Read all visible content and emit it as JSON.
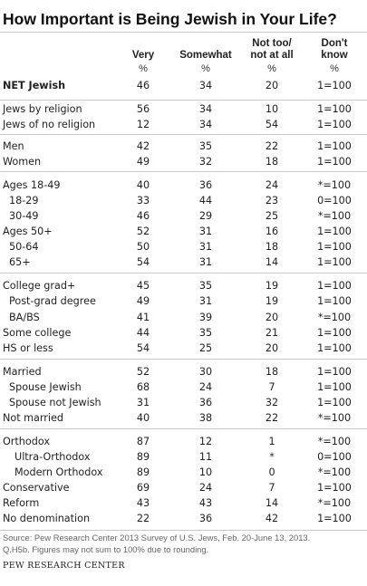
{
  "title": "How Important is Being Jewish in Your Life?",
  "columns": [
    {
      "l1": "Very",
      "l2": "",
      "unit": "%"
    },
    {
      "l1": "Somewhat",
      "l2": "",
      "unit": "%"
    },
    {
      "l1": "Not too/",
      "l2": "not at all",
      "unit": "%"
    },
    {
      "l1": "Don't",
      "l2": "know",
      "unit": "%"
    }
  ],
  "rows": [
    {
      "label": "NET Jewish",
      "very": "46",
      "somewhat": "34",
      "not": "20",
      "dk": "1=100"
    },
    {
      "label": "Jews by religion",
      "very": "56",
      "somewhat": "34",
      "not": "10",
      "dk": "1=100"
    },
    {
      "label": "Jews of no religion",
      "very": "12",
      "somewhat": "34",
      "not": "54",
      "dk": "1=100"
    },
    {
      "label": "Men",
      "very": "42",
      "somewhat": "35",
      "not": "22",
      "dk": "1=100"
    },
    {
      "label": "Women",
      "very": "49",
      "somewhat": "32",
      "not": "18",
      "dk": "1=100"
    },
    {
      "label": "Ages 18-49",
      "very": "40",
      "somewhat": "36",
      "not": "24",
      "dk": "*=100"
    },
    {
      "label": "18-29",
      "very": "33",
      "somewhat": "44",
      "not": "23",
      "dk": "0=100"
    },
    {
      "label": "30-49",
      "very": "46",
      "somewhat": "29",
      "not": "25",
      "dk": "*=100"
    },
    {
      "label": "Ages 50+",
      "very": "52",
      "somewhat": "31",
      "not": "16",
      "dk": "1=100"
    },
    {
      "label": "50-64",
      "very": "50",
      "somewhat": "31",
      "not": "18",
      "dk": "1=100"
    },
    {
      "label": "65+",
      "very": "54",
      "somewhat": "31",
      "not": "14",
      "dk": "1=100"
    },
    {
      "label": "College grad+",
      "very": "45",
      "somewhat": "35",
      "not": "19",
      "dk": "1=100"
    },
    {
      "label": "Post-grad degree",
      "very": "49",
      "somewhat": "31",
      "not": "19",
      "dk": "1=100"
    },
    {
      "label": "BA/BS",
      "very": "41",
      "somewhat": "39",
      "not": "20",
      "dk": "*=100"
    },
    {
      "label": "Some college",
      "very": "44",
      "somewhat": "35",
      "not": "21",
      "dk": "1=100"
    },
    {
      "label": "HS or less",
      "very": "54",
      "somewhat": "25",
      "not": "20",
      "dk": "1=100"
    },
    {
      "label": "Married",
      "very": "52",
      "somewhat": "30",
      "not": "18",
      "dk": "1=100"
    },
    {
      "label": "Spouse Jewish",
      "very": "68",
      "somewhat": "24",
      "not": "7",
      "dk": "1=100"
    },
    {
      "label": "Spouse not Jewish",
      "very": "31",
      "somewhat": "36",
      "not": "32",
      "dk": "1=100"
    },
    {
      "label": "Not married",
      "very": "40",
      "somewhat": "38",
      "not": "22",
      "dk": "*=100"
    },
    {
      "label": "Orthodox",
      "very": "87",
      "somewhat": "12",
      "not": "1",
      "dk": "*=100"
    },
    {
      "label": "Ultra-Orthodox",
      "very": "89",
      "somewhat": "11",
      "not": "*",
      "dk": "0=100"
    },
    {
      "label": "Modern Orthodox",
      "very": "89",
      "somewhat": "10",
      "not": "0",
      "dk": "*=100"
    },
    {
      "label": "Conservative",
      "very": "69",
      "somewhat": "24",
      "not": "7",
      "dk": "1=100"
    },
    {
      "label": "Reform",
      "very": "43",
      "somewhat": "43",
      "not": "14",
      "dk": "*=100"
    },
    {
      "label": "No denomination",
      "very": "22",
      "somewhat": "36",
      "not": "42",
      "dk": "1=100"
    }
  ],
  "source_line1": "Source: Pew Research Center 2013 Survey of U.S. Jews, Feb. 20-June 13, 2013.",
  "source_line2": "Q.H5b. Figures may not sum to 100% due to rounding.",
  "organization": "PEW RESEARCH CENTER"
}
